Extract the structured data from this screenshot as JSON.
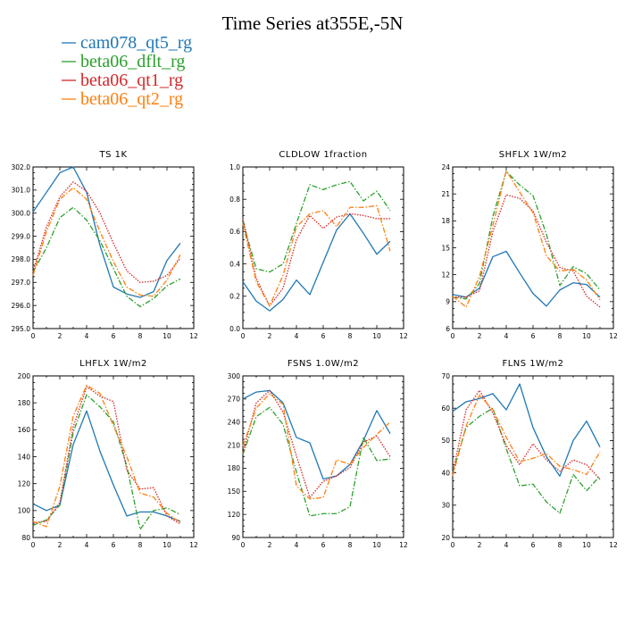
{
  "figure": {
    "title": "Time Series at355E,-5N"
  },
  "legend": [
    {
      "name": "cam078_qt5_rg",
      "color": "#1f77b4",
      "dash": "solid"
    },
    {
      "name": "beta06_dflt_rg",
      "color": "#2ca02c",
      "dash": "dashdot"
    },
    {
      "name": "beta06_qt1_rg",
      "color": "#d62728",
      "dash": "dotted"
    },
    {
      "name": "beta06_qt2_rg",
      "color": "#ff7f0e",
      "dash": "dashdot"
    }
  ],
  "chart_data": [
    {
      "type": "line",
      "title": "TS  1K",
      "xlim": [
        0,
        12
      ],
      "xticks": [
        0,
        2,
        4,
        6,
        8,
        10,
        12
      ],
      "ylim": [
        295,
        302
      ],
      "yticks": [
        295.0,
        296.0,
        297.0,
        298.0,
        299.0,
        300.0,
        301.0,
        302.0
      ],
      "ydec": 1,
      "x": [
        0,
        1,
        2,
        3,
        4,
        5,
        6,
        7,
        8,
        9,
        10,
        11
      ],
      "series": [
        {
          "name": "cam078_qt5_rg",
          "values": [
            300.05,
            300.9,
            301.75,
            302.0,
            300.9,
            298.6,
            296.8,
            296.5,
            296.35,
            296.6,
            297.95,
            298.7
          ]
        },
        {
          "name": "beta06_dflt_rg",
          "values": [
            297.45,
            298.5,
            299.8,
            300.25,
            299.7,
            298.8,
            297.6,
            296.4,
            295.95,
            296.3,
            296.85,
            297.15
          ]
        },
        {
          "name": "beta06_qt1_rg",
          "values": [
            297.45,
            299.4,
            300.7,
            301.35,
            300.95,
            300.0,
            298.7,
            297.5,
            297.0,
            297.05,
            297.3,
            298.05
          ]
        },
        {
          "name": "beta06_qt2_rg",
          "values": [
            297.3,
            299.2,
            300.6,
            301.1,
            300.6,
            299.2,
            297.9,
            296.8,
            296.45,
            296.4,
            297.1,
            298.2
          ]
        }
      ]
    },
    {
      "type": "line",
      "title": "CLDLOW  1fraction",
      "xlim": [
        0,
        12
      ],
      "xticks": [
        0,
        2,
        4,
        6,
        8,
        10,
        12
      ],
      "ylim": [
        0,
        1
      ],
      "yticks": [
        0.0,
        0.2,
        0.4,
        0.6,
        0.8,
        1.0
      ],
      "ydec": 1,
      "x": [
        0,
        1,
        2,
        3,
        4,
        5,
        6,
        7,
        8,
        9,
        10,
        11
      ],
      "series": [
        {
          "name": "cam078_qt5_rg",
          "values": [
            0.29,
            0.17,
            0.11,
            0.18,
            0.3,
            0.21,
            0.41,
            0.61,
            0.71,
            0.59,
            0.46,
            0.54
          ]
        },
        {
          "name": "beta06_dflt_rg",
          "values": [
            0.66,
            0.37,
            0.35,
            0.4,
            0.65,
            0.89,
            0.86,
            0.89,
            0.91,
            0.79,
            0.85,
            0.73
          ]
        },
        {
          "name": "beta06_qt1_rg",
          "values": [
            0.68,
            0.31,
            0.14,
            0.25,
            0.55,
            0.7,
            0.62,
            0.69,
            0.71,
            0.7,
            0.68,
            0.68
          ]
        },
        {
          "name": "beta06_qt2_rg",
          "values": [
            0.65,
            0.29,
            0.14,
            0.33,
            0.63,
            0.71,
            0.73,
            0.63,
            0.75,
            0.75,
            0.76,
            0.48
          ]
        }
      ]
    },
    {
      "type": "line",
      "title": "SHFLX  1W/m2",
      "xlim": [
        0,
        12
      ],
      "xticks": [
        0,
        2,
        4,
        6,
        8,
        10,
        12
      ],
      "ylim": [
        6,
        24
      ],
      "yticks": [
        6,
        9,
        12,
        15,
        18,
        21,
        24
      ],
      "ydec": 0,
      "x": [
        0,
        1,
        2,
        3,
        4,
        5,
        6,
        7,
        8,
        9,
        10,
        11
      ],
      "series": [
        {
          "name": "cam078_qt5_rg",
          "values": [
            9.8,
            9.5,
            10.5,
            14.0,
            14.6,
            12.2,
            9.9,
            8.5,
            10.3,
            11.1,
            10.9,
            9.5
          ]
        },
        {
          "name": "beta06_dflt_rg",
          "values": [
            9.5,
            9.3,
            11.0,
            18.5,
            23.5,
            22.0,
            20.8,
            16.5,
            10.8,
            12.9,
            12.1,
            10.3
          ]
        },
        {
          "name": "beta06_qt1_rg",
          "values": [
            9.5,
            9.5,
            10.2,
            16.8,
            20.9,
            20.5,
            19.1,
            15.6,
            12.8,
            12.4,
            9.6,
            8.4
          ]
        },
        {
          "name": "beta06_qt2_rg",
          "values": [
            9.6,
            8.4,
            11.8,
            17.5,
            23.6,
            21.2,
            18.9,
            14.1,
            12.4,
            12.6,
            11.4,
            9.2
          ]
        }
      ]
    },
    {
      "type": "line",
      "title": "LHFLX  1W/m2",
      "xlim": [
        0,
        12
      ],
      "xticks": [
        0,
        2,
        4,
        6,
        8,
        10,
        12
      ],
      "ylim": [
        80,
        200
      ],
      "yticks": [
        80,
        100,
        120,
        140,
        160,
        180,
        200
      ],
      "ydec": 0,
      "x": [
        0,
        1,
        2,
        3,
        4,
        5,
        6,
        7,
        8,
        9,
        10,
        11
      ],
      "series": [
        {
          "name": "cam078_qt5_rg",
          "values": [
            105,
            100,
            104,
            149,
            174,
            144,
            119,
            96,
            99,
            99,
            96,
            92
          ]
        },
        {
          "name": "beta06_dflt_rg",
          "values": [
            89,
            93,
            104,
            158,
            186,
            177,
            166,
            133,
            86,
            100,
            102,
            97
          ]
        },
        {
          "name": "beta06_qt1_rg",
          "values": [
            91,
            92,
            106,
            162,
            192,
            185,
            181,
            130,
            116,
            117,
            96,
            90
          ]
        },
        {
          "name": "beta06_qt2_rg",
          "values": [
            92,
            88,
            118,
            170,
            193,
            187,
            163,
            140,
            113,
            110,
            98,
            91
          ]
        }
      ]
    },
    {
      "type": "line",
      "title": "FSNS  1.0W/m2",
      "xlim": [
        0,
        12
      ],
      "xticks": [
        0,
        2,
        4,
        6,
        8,
        10,
        12
      ],
      "ylim": [
        90,
        300
      ],
      "yticks": [
        90,
        120,
        150,
        180,
        210,
        240,
        270,
        300
      ],
      "ydec": 0,
      "x": [
        0,
        1,
        2,
        3,
        4,
        5,
        6,
        7,
        8,
        9,
        10,
        11
      ],
      "series": [
        {
          "name": "cam078_qt5_rg",
          "values": [
            270,
            279,
            281,
            265,
            220,
            213,
            166,
            170,
            185,
            216,
            255,
            225
          ]
        },
        {
          "name": "beta06_dflt_rg",
          "values": [
            198,
            247,
            259,
            237,
            175,
            118,
            121,
            121,
            130,
            220,
            190,
            192
          ]
        },
        {
          "name": "beta06_qt1_rg",
          "values": [
            200,
            265,
            281,
            253,
            196,
            142,
            163,
            170,
            181,
            214,
            222,
            195
          ]
        },
        {
          "name": "beta06_qt2_rg",
          "values": [
            209,
            258,
            277,
            263,
            157,
            140,
            142,
            191,
            185,
            207,
            224,
            240
          ]
        }
      ]
    },
    {
      "type": "line",
      "title": "FLNS  1W/m2",
      "xlim": [
        0,
        12
      ],
      "xticks": [
        0,
        2,
        4,
        6,
        8,
        10,
        12
      ],
      "ylim": [
        20,
        70
      ],
      "yticks": [
        20,
        30,
        40,
        50,
        60,
        70
      ],
      "ydec": 0,
      "x": [
        0,
        1,
        2,
        3,
        4,
        5,
        6,
        7,
        8,
        9,
        10,
        11
      ],
      "series": [
        {
          "name": "cam078_qt5_rg",
          "values": [
            59,
            62,
            63,
            64.5,
            59.5,
            67.5,
            54,
            45,
            39,
            50,
            56,
            48
          ]
        },
        {
          "name": "beta06_dflt_rg",
          "values": [
            40,
            54,
            57.5,
            60,
            47.5,
            36,
            36.5,
            31,
            27.5,
            39.5,
            34.5,
            39
          ]
        },
        {
          "name": "beta06_qt1_rg",
          "values": [
            40,
            59.5,
            65.5,
            58.5,
            48.5,
            42.5,
            49,
            44,
            40.5,
            44,
            42.5,
            38
          ]
        },
        {
          "name": "beta06_qt2_rg",
          "values": [
            39,
            54.5,
            64,
            59.5,
            51,
            43.5,
            44.5,
            46,
            42,
            41,
            39.5,
            46.5
          ]
        }
      ]
    }
  ]
}
